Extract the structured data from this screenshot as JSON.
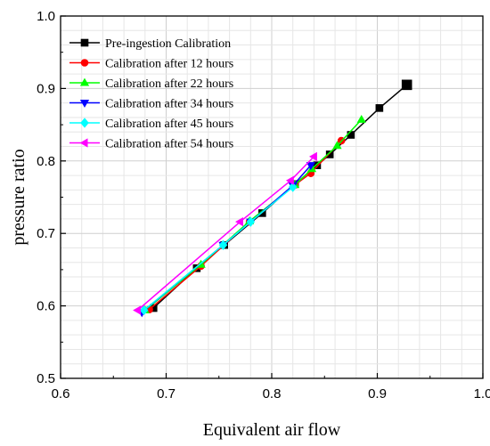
{
  "chart_data": {
    "type": "line",
    "xlabel": "Equivalent air flow",
    "ylabel": "pressure ratio",
    "xlim": [
      0.6,
      1.0
    ],
    "ylim": [
      0.5,
      1.0
    ],
    "xticks": [
      0.6,
      0.7,
      0.8,
      0.9,
      1.0
    ],
    "yticks": [
      0.5,
      0.6,
      0.7,
      0.8,
      0.9,
      1.0
    ],
    "xtick_labels": [
      "0.6",
      "0.7",
      "0.8",
      "0.9",
      "1.0"
    ],
    "ytick_labels": [
      "0.5",
      "0.6",
      "0.7",
      "0.8",
      "0.9",
      "1.0"
    ],
    "grid": true,
    "legend_position": "top-left",
    "series": [
      {
        "name": "Pre-ingestion Calibration",
        "color": "#000000",
        "marker": "square",
        "points": [
          [
            0.688,
            0.597
          ],
          [
            0.729,
            0.652
          ],
          [
            0.755,
            0.684
          ],
          [
            0.791,
            0.728
          ],
          [
            0.822,
            0.768
          ],
          [
            0.843,
            0.794
          ],
          [
            0.855,
            0.809
          ],
          [
            0.875,
            0.836
          ],
          [
            0.902,
            0.873
          ],
          [
            0.928,
            0.905
          ]
        ]
      },
      {
        "name": "Calibration after 12 hours",
        "color": "#ff0000",
        "marker": "circle",
        "points": [
          [
            0.684,
            0.595
          ],
          [
            0.733,
            0.655
          ],
          [
            0.779,
            0.716
          ],
          [
            0.822,
            0.767
          ],
          [
            0.837,
            0.783
          ],
          [
            0.866,
            0.828
          ]
        ]
      },
      {
        "name": "Calibration after 22 hours",
        "color": "#00ff00",
        "marker": "triangle-up",
        "points": [
          [
            0.68,
            0.594
          ],
          [
            0.733,
            0.657
          ],
          [
            0.779,
            0.717
          ],
          [
            0.822,
            0.767
          ],
          [
            0.838,
            0.789
          ],
          [
            0.862,
            0.821
          ],
          [
            0.885,
            0.857
          ]
        ]
      },
      {
        "name": "Calibration after 34 hours",
        "color": "#0000ff",
        "marker": "triangle-down",
        "points": [
          [
            0.677,
            0.591
          ],
          [
            0.754,
            0.684
          ],
          [
            0.78,
            0.716
          ],
          [
            0.82,
            0.766
          ],
          [
            0.837,
            0.794
          ]
        ]
      },
      {
        "name": "Calibration after 45 hours",
        "color": "#00ffff",
        "marker": "diamond",
        "points": [
          [
            0.679,
            0.594
          ],
          [
            0.754,
            0.684
          ],
          [
            0.78,
            0.716
          ],
          [
            0.82,
            0.764
          ]
        ]
      },
      {
        "name": "Calibration after 54 hours",
        "color": "#ff00ff",
        "marker": "triangle-left",
        "points": [
          [
            0.673,
            0.594
          ],
          [
            0.77,
            0.716
          ],
          [
            0.818,
            0.773
          ],
          [
            0.84,
            0.806
          ]
        ]
      }
    ]
  }
}
